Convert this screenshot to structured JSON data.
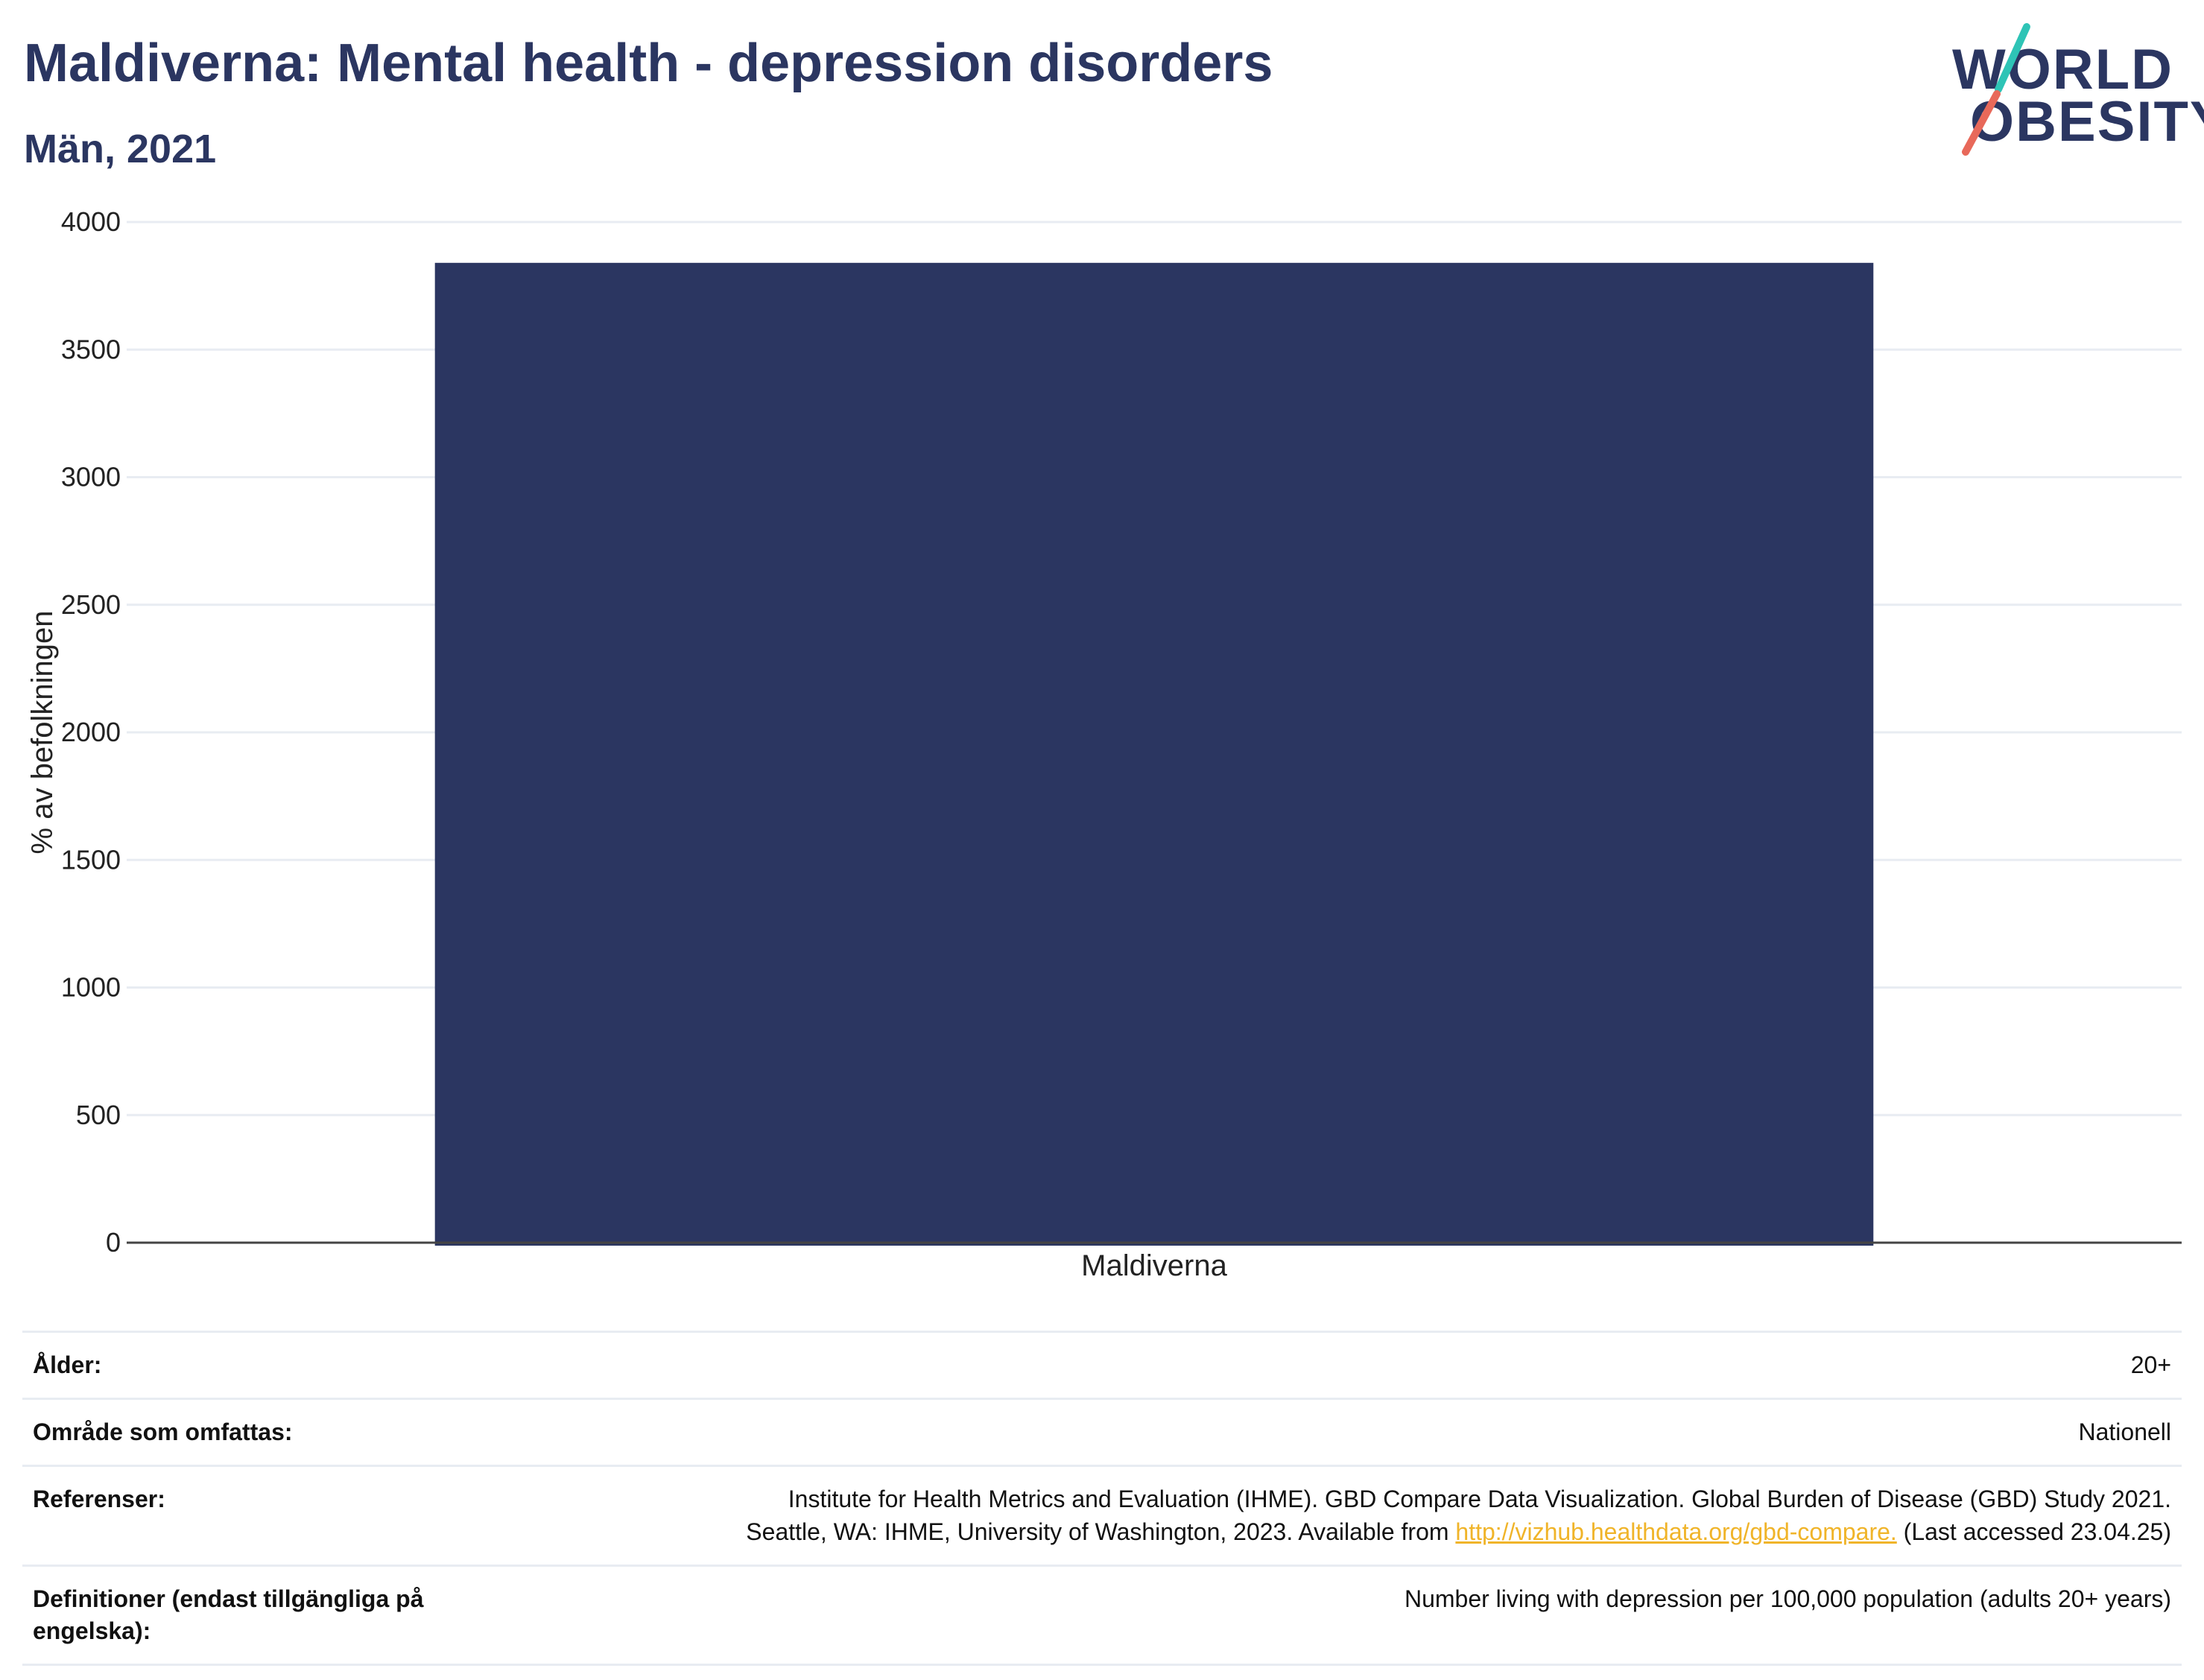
{
  "header": {
    "title": "Maldiverna: Mental health - depression disorders",
    "subtitle": "Män, 2021"
  },
  "logo": {
    "line1": "WORLD",
    "line2": "OBESITY",
    "colors": {
      "text": "#2b3661",
      "teal": "#2ec4b6",
      "coral": "#e8695a"
    }
  },
  "chart_data": {
    "type": "bar",
    "categories": [
      "Maldiverna"
    ],
    "values": [
      3840
    ],
    "ylabel": "% av befolkningen",
    "xlabel": "",
    "ylim": [
      0,
      4000
    ],
    "yticks": [
      0,
      500,
      1000,
      1500,
      2000,
      2500,
      3000,
      3500,
      4000
    ],
    "grid": true,
    "bar_color": "#2b3661"
  },
  "info": {
    "rows": [
      {
        "label": "Ålder:",
        "value": "20+"
      },
      {
        "label": "Område som omfattas:",
        "value": "Nationell"
      }
    ],
    "references": {
      "label": "Referenser:",
      "line1": "Institute for Health Metrics and Evaluation (IHME). GBD Compare Data Visualization. Global Burden of Disease (GBD) Study 2021.",
      "line2_before": "Seattle, WA: IHME, University of Washington, 2023. Available from ",
      "link": "http://vizhub.healthdata.org/gbd-compare.",
      "line2_after": " (Last accessed 23.04.25)"
    },
    "definitions": {
      "label": "Definitioner (endast tillgängliga på engelska):",
      "value": "Number living with depression per 100,000 population (adults 20+ years)"
    }
  }
}
